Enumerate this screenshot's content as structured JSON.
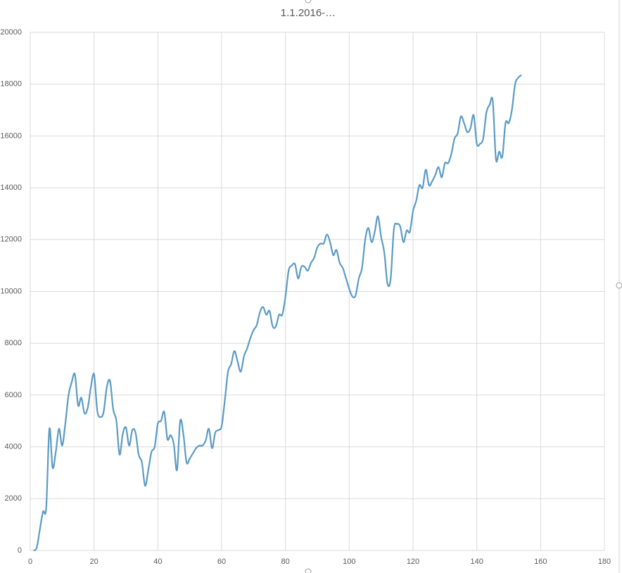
{
  "chart_data": {
    "type": "line",
    "title": "1.1.2016-…",
    "x": [
      1,
      2,
      3,
      4,
      5,
      6,
      7,
      8,
      9,
      10,
      11,
      12,
      13,
      14,
      15,
      16,
      17,
      18,
      19,
      20,
      21,
      22,
      23,
      24,
      25,
      26,
      27,
      28,
      29,
      30,
      31,
      32,
      33,
      34,
      35,
      36,
      37,
      38,
      39,
      40,
      41,
      42,
      43,
      44,
      45,
      46,
      47,
      48,
      49,
      50,
      51,
      52,
      53,
      54,
      55,
      56,
      57,
      58,
      59,
      60,
      61,
      62,
      63,
      64,
      65,
      66,
      67,
      68,
      69,
      70,
      71,
      72,
      73,
      74,
      75,
      76,
      77,
      78,
      79,
      80,
      81,
      82,
      83,
      84,
      85,
      86,
      87,
      88,
      89,
      90,
      91,
      92,
      93,
      94,
      95,
      96,
      97,
      98,
      99,
      100,
      101,
      102,
      103,
      104,
      105,
      106,
      107,
      108,
      109,
      110,
      111,
      112,
      113,
      114,
      115,
      116,
      117,
      118,
      119,
      120,
      121,
      122,
      123,
      124,
      125,
      126,
      127,
      128,
      129,
      130,
      131,
      132,
      133,
      134,
      135,
      136,
      137,
      138,
      139,
      140,
      141,
      142,
      143,
      144,
      145,
      146,
      147,
      148,
      149,
      150,
      151,
      152,
      153,
      154
    ],
    "series": [
      {
        "color": "#5b9bc5",
        "values": [
          0,
          100,
          800,
          1500,
          1650,
          4700,
          3200,
          3800,
          4700,
          4050,
          4900,
          6000,
          6500,
          6800,
          5600,
          5900,
          5300,
          5500,
          6300,
          6800,
          5400,
          5150,
          5350,
          6300,
          6550,
          5450,
          5000,
          3700,
          4500,
          4750,
          4050,
          4650,
          4550,
          3700,
          3400,
          2500,
          3100,
          3800,
          4000,
          4900,
          5000,
          5350,
          4300,
          4450,
          4100,
          3100,
          5000,
          4500,
          3400,
          3550,
          3750,
          3950,
          4050,
          4050,
          4250,
          4700,
          3950,
          4550,
          4650,
          4800,
          5800,
          6900,
          7200,
          7700,
          7300,
          6900,
          7500,
          7800,
          8200,
          8500,
          8700,
          9200,
          9400,
          9100,
          9250,
          8650,
          8650,
          9100,
          9100,
          9800,
          10800,
          11000,
          11050,
          10500,
          10950,
          10950,
          10800,
          11100,
          11300,
          11700,
          11850,
          11850,
          12200,
          11900,
          11400,
          11600,
          11100,
          10900,
          10500,
          10100,
          9800,
          9850,
          10500,
          10900,
          12000,
          12450,
          11900,
          12300,
          12900,
          12100,
          11500,
          10300,
          10500,
          12400,
          12600,
          12500,
          11900,
          12350,
          12300,
          13100,
          13500,
          14100,
          14000,
          14700,
          14100,
          14250,
          14500,
          14800,
          14400,
          14950,
          14950,
          15300,
          15900,
          16100,
          16750,
          16500,
          16150,
          16300,
          16800,
          15700,
          15700,
          15900,
          16900,
          17200,
          17350,
          15100,
          15400,
          15200,
          16500,
          16500,
          17000,
          18000,
          18250,
          18350
        ]
      }
    ],
    "xlim": [
      0,
      180
    ],
    "xticks": [
      0,
      20,
      40,
      60,
      80,
      100,
      120,
      140,
      160,
      180
    ],
    "ylim": [
      0,
      20000
    ],
    "yticks": [
      0,
      2000,
      4000,
      6000,
      8000,
      10000,
      12000,
      14000,
      16000,
      18000,
      20000
    ],
    "grid": true
  }
}
